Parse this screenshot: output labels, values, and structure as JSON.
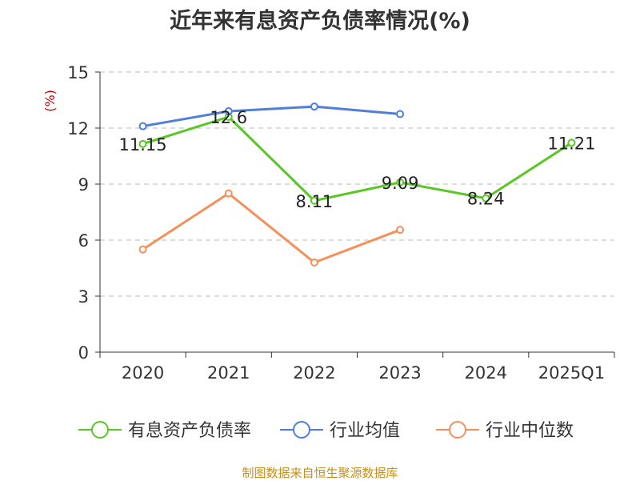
{
  "chart_data": {
    "type": "line",
    "title": "近年来有息资产负债率情况(%)",
    "ylabel": "(%)",
    "categories": [
      "2020",
      "2021",
      "2022",
      "2023",
      "2024",
      "2025Q1"
    ],
    "ylim": [
      0,
      15
    ],
    "yticks": [
      0,
      3,
      6,
      9,
      12,
      15
    ],
    "grid": true,
    "legend_position": "bottom",
    "series": [
      {
        "name": "有息资产负债率",
        "color": "#5ac727",
        "values": [
          11.15,
          12.6,
          8.11,
          9.09,
          8.24,
          11.21
        ],
        "labels": [
          "11.15",
          "12.6",
          "8.11",
          "9.09",
          "8.24",
          "11.21"
        ]
      },
      {
        "name": "行业均值",
        "color": "#4f7fd8",
        "values": [
          12.1,
          12.9,
          13.15,
          12.75,
          null,
          null
        ]
      },
      {
        "name": "行业中位数",
        "color": "#f5905a",
        "values": [
          5.5,
          8.5,
          4.8,
          6.55,
          null,
          null
        ]
      }
    ]
  },
  "source": "制图数据来自恒生聚源数据库",
  "colors": {
    "axis": "#333333",
    "grid": "#bbbbbb",
    "ylabel": "#cc0000",
    "source": "#c58f1c"
  }
}
